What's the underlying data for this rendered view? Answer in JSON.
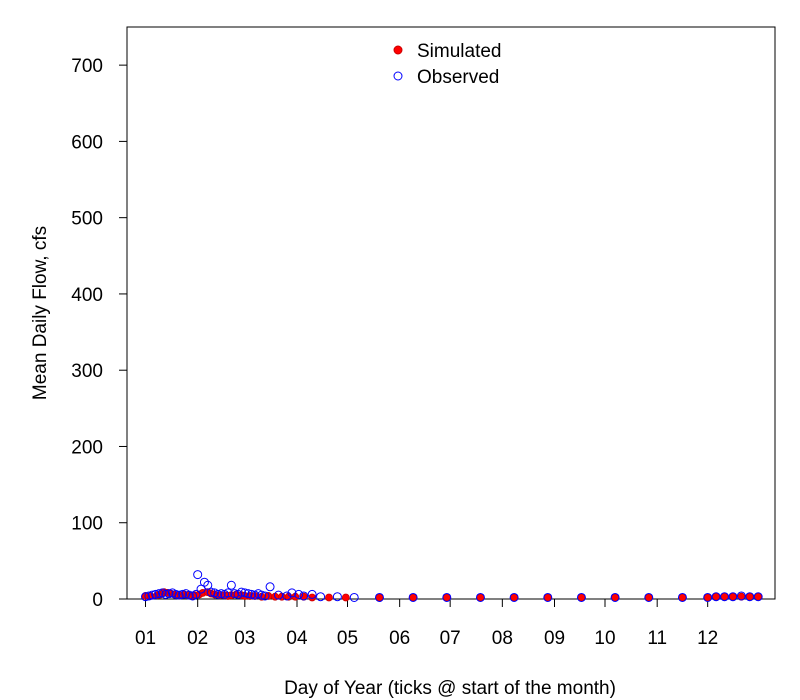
{
  "chart_data": {
    "type": "scatter",
    "title": "",
    "xlabel": "Day of Year (ticks @ start of the month)",
    "ylabel": "Mean Daily Flow, cfs",
    "xlim": [
      -10,
      375
    ],
    "ylim": [
      0,
      750
    ],
    "yticks": [
      0,
      100,
      200,
      300,
      400,
      500,
      600,
      700
    ],
    "xticks": [
      {
        "day": 1,
        "label": "01"
      },
      {
        "day": 32,
        "label": "02"
      },
      {
        "day": 60,
        "label": "03"
      },
      {
        "day": 91,
        "label": "04"
      },
      {
        "day": 121,
        "label": "05"
      },
      {
        "day": 152,
        "label": "06"
      },
      {
        "day": 182,
        "label": "07"
      },
      {
        "day": 213,
        "label": "08"
      },
      {
        "day": 244,
        "label": "09"
      },
      {
        "day": 274,
        "label": "10"
      },
      {
        "day": 305,
        "label": "11"
      },
      {
        "day": 335,
        "label": "12"
      }
    ],
    "legend_position": "top-center",
    "series": [
      {
        "name": "Simulated",
        "marker": "filled-circle",
        "color": "#ff0000",
        "x": [
          1,
          4,
          8,
          10,
          12,
          14,
          16,
          18,
          20,
          22,
          24,
          26,
          28,
          30,
          33,
          35,
          38,
          40,
          42,
          45,
          48,
          50,
          52,
          55,
          58,
          60,
          63,
          66,
          70,
          74,
          78,
          82,
          86,
          90,
          95,
          100,
          110,
          120,
          140,
          160,
          180,
          200,
          220,
          240,
          260,
          280,
          300,
          320,
          335,
          340,
          345,
          350,
          355,
          360,
          365
        ],
        "y": [
          4,
          4,
          5,
          6,
          9,
          8,
          7,
          6,
          5,
          5,
          6,
          5,
          4,
          5,
          6,
          8,
          9,
          7,
          6,
          5,
          5,
          4,
          5,
          6,
          5,
          4,
          4,
          4,
          3,
          4,
          3,
          3,
          3,
          3,
          3,
          2,
          2,
          2,
          2,
          2,
          2,
          2,
          2,
          2,
          2,
          2,
          2,
          2,
          2,
          3,
          3,
          3,
          3,
          3,
          3
        ]
      },
      {
        "name": "Observed",
        "marker": "open-circle",
        "color": "#0000ff",
        "x": [
          1,
          3,
          5,
          7,
          9,
          11,
          13,
          15,
          17,
          19,
          21,
          23,
          25,
          27,
          29,
          31,
          32,
          34,
          36,
          38,
          40,
          42,
          44,
          46,
          48,
          50,
          52,
          54,
          56,
          58,
          60,
          62,
          64,
          66,
          68,
          70,
          72,
          75,
          80,
          85,
          88,
          92,
          95,
          100,
          105,
          115,
          125,
          140,
          160,
          180,
          200,
          220,
          240,
          260,
          280,
          300,
          320,
          335,
          340,
          345,
          350,
          355,
          360,
          365
        ],
        "y": [
          3,
          4,
          5,
          6,
          7,
          8,
          6,
          7,
          8,
          6,
          5,
          6,
          7,
          5,
          4,
          6,
          32,
          13,
          22,
          18,
          9,
          8,
          6,
          7,
          6,
          8,
          18,
          7,
          6,
          9,
          8,
          7,
          6,
          5,
          7,
          5,
          4,
          16,
          5,
          4,
          8,
          6,
          4,
          6,
          3,
          3,
          2,
          2,
          2,
          2,
          2,
          2,
          2,
          2,
          2,
          2,
          2,
          2,
          3,
          3,
          3,
          4,
          3,
          3
        ]
      }
    ]
  }
}
